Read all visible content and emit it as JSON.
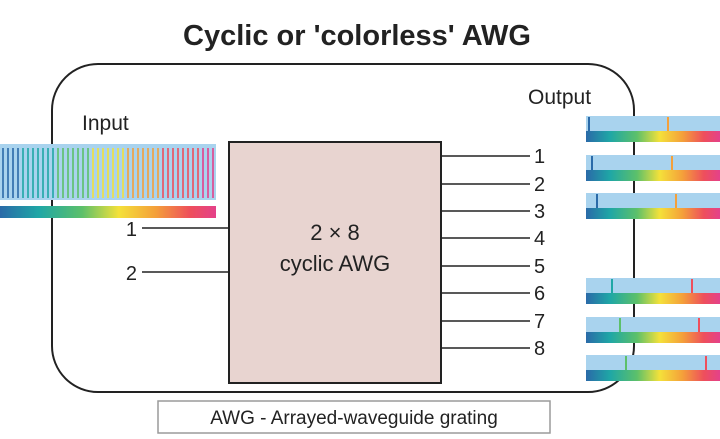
{
  "title": "Cyclic or 'colorless' AWG",
  "input_label": "Input",
  "output_label": "Output",
  "input_ports": [
    "1",
    "2"
  ],
  "output_ports": [
    "1",
    "2",
    "3",
    "4",
    "5",
    "6",
    "7",
    "8"
  ],
  "device": {
    "line1": "2 × 8",
    "line2": "cyclic AWG"
  },
  "caption": "AWG - Arrayed-waveguide grating",
  "colors": {
    "device_fill": "#e8d4d0",
    "stroke": "#222222",
    "band_background": "#a9d3ee",
    "spectrum": [
      "#2a6aa8",
      "#1fa7a6",
      "#5cc06a",
      "#f4e13a",
      "#f4a03a",
      "#ee4f5c",
      "#e4418a"
    ]
  }
}
